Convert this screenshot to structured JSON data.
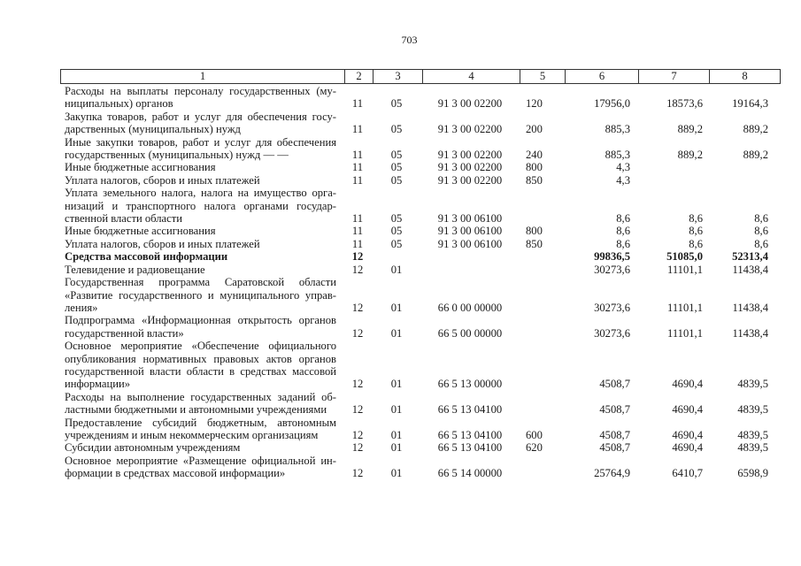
{
  "page_number": "703",
  "header": [
    "1",
    "2",
    "3",
    "4",
    "5",
    "6",
    "7",
    "8"
  ],
  "rows": [
    {
      "lines": [
        "Расходы на выплаты персоналу государственных (му-",
        "ниципальных) органов"
      ],
      "c2": "11",
      "c3": "05",
      "c4": "91 3 00 02200",
      "c5": "120",
      "c6": "17956,0",
      "c7": "18573,6",
      "c8": "19164,3"
    },
    {
      "lines": [
        "Закупка товаров, работ и услуг для обеспечения госу-",
        "дарственных (муниципальных) нужд"
      ],
      "c2": "11",
      "c3": "05",
      "c4": "91 3 00 02200",
      "c5": "200",
      "c6": "885,3",
      "c7": "889,2",
      "c8": "889,2"
    },
    {
      "lines": [
        "Иные закупки товаров, работ и услуг для обеспечения",
        "государственных (муниципальных) нужд   —     —"
      ],
      "c2": "11",
      "c3": "05",
      "c4": "91 3 00 02200",
      "c5": "240",
      "c6": "885,3",
      "c7": "889,2",
      "c8": "889,2"
    },
    {
      "lines": [
        "Иные бюджетные ассигнования"
      ],
      "c2": "11",
      "c3": "05",
      "c4": "91 3 00 02200",
      "c5": "800",
      "c6": "4,3",
      "c7": "",
      "c8": ""
    },
    {
      "lines": [
        "Уплата налогов, сборов и иных платежей"
      ],
      "c2": "11",
      "c3": "05",
      "c4": "91 3 00 02200",
      "c5": "850",
      "c6": "4,3",
      "c7": "",
      "c8": ""
    },
    {
      "lines": [
        "Уплата земельного налога, налога на имущество орга-",
        "низаций и транспортного налога органами государ-",
        "ственной власти области"
      ],
      "c2": "11",
      "c3": "05",
      "c4": "91 3 00 06100",
      "c5": "",
      "c6": "8,6",
      "c7": "8,6",
      "c8": "8,6"
    },
    {
      "lines": [
        "Иные бюджетные ассигнования"
      ],
      "c2": "11",
      "c3": "05",
      "c4": "91 3 00 06100",
      "c5": "800",
      "c6": "8,6",
      "c7": "8,6",
      "c8": "8,6"
    },
    {
      "lines": [
        "Уплата налогов, сборов и иных платежей"
      ],
      "c2": "11",
      "c3": "05",
      "c4": "91 3 00 06100",
      "c5": "850",
      "c6": "8,6",
      "c7": "8,6",
      "c8": "8,6"
    },
    {
      "lines": [
        "Средства массовой информации"
      ],
      "bold": true,
      "c2": "12",
      "c3": "",
      "c4": "",
      "c5": "",
      "c6": "99836,5",
      "c7": "51085,0",
      "c8": "52313,4"
    },
    {
      "lines": [
        "Телевидение и радиовещание"
      ],
      "c2": "12",
      "c3": "01",
      "c4": "",
      "c5": "",
      "c6": "30273,6",
      "c7": "11101,1",
      "c8": "11438,4"
    },
    {
      "lines": [
        "Государственная программа Саратовской области",
        "«Развитие государственного и муниципального управ-",
        "ления»"
      ],
      "c2": "12",
      "c3": "01",
      "c4": "66 0 00 00000",
      "c5": "",
      "c6": "30273,6",
      "c7": "11101,1",
      "c8": "11438,4"
    },
    {
      "lines": [
        "Подпрограмма «Информационная открытость органов",
        "государственной власти»"
      ],
      "c2": "12",
      "c3": "01",
      "c4": "66 5 00 00000",
      "c5": "",
      "c6": "30273,6",
      "c7": "11101,1",
      "c8": "11438,4"
    },
    {
      "lines": [
        "Основное мероприятие «Обеспечение официального",
        "опубликования нормативных правовых актов органов",
        "государственной власти области в средствах массовой",
        "информации»"
      ],
      "c2": "12",
      "c3": "01",
      "c4": "66 5 13 00000",
      "c5": "",
      "c6": "4508,7",
      "c7": "4690,4",
      "c8": "4839,5"
    },
    {
      "lines": [
        "Расходы на выполнение государственных заданий об-",
        "ластными бюджетными и автономными учреждениями"
      ],
      "c2": "12",
      "c3": "01",
      "c4": "66 5 13 04100",
      "c5": "",
      "c6": "4508,7",
      "c7": "4690,4",
      "c8": "4839,5"
    },
    {
      "lines": [
        "Предоставление субсидий бюджетным, автономным",
        "учреждениям и иным некоммерческим организациям"
      ],
      "c2": "12",
      "c3": "01",
      "c4": "66 5 13 04100",
      "c5": "600",
      "c6": "4508,7",
      "c7": "4690,4",
      "c8": "4839,5"
    },
    {
      "lines": [
        "Субсидии автономным учреждениям"
      ],
      "c2": "12",
      "c3": "01",
      "c4": "66 5 13 04100",
      "c5": "620",
      "c6": "4508,7",
      "c7": "4690,4",
      "c8": "4839,5"
    },
    {
      "lines": [
        "Основное мероприятие «Размещение официальной ин-",
        "формации в средствах массовой информации»"
      ],
      "c2": "12",
      "c3": "01",
      "c4": "66 5 14 00000",
      "c5": "",
      "c6": "25764,9",
      "c7": "6410,7",
      "c8": "6598,9"
    }
  ]
}
